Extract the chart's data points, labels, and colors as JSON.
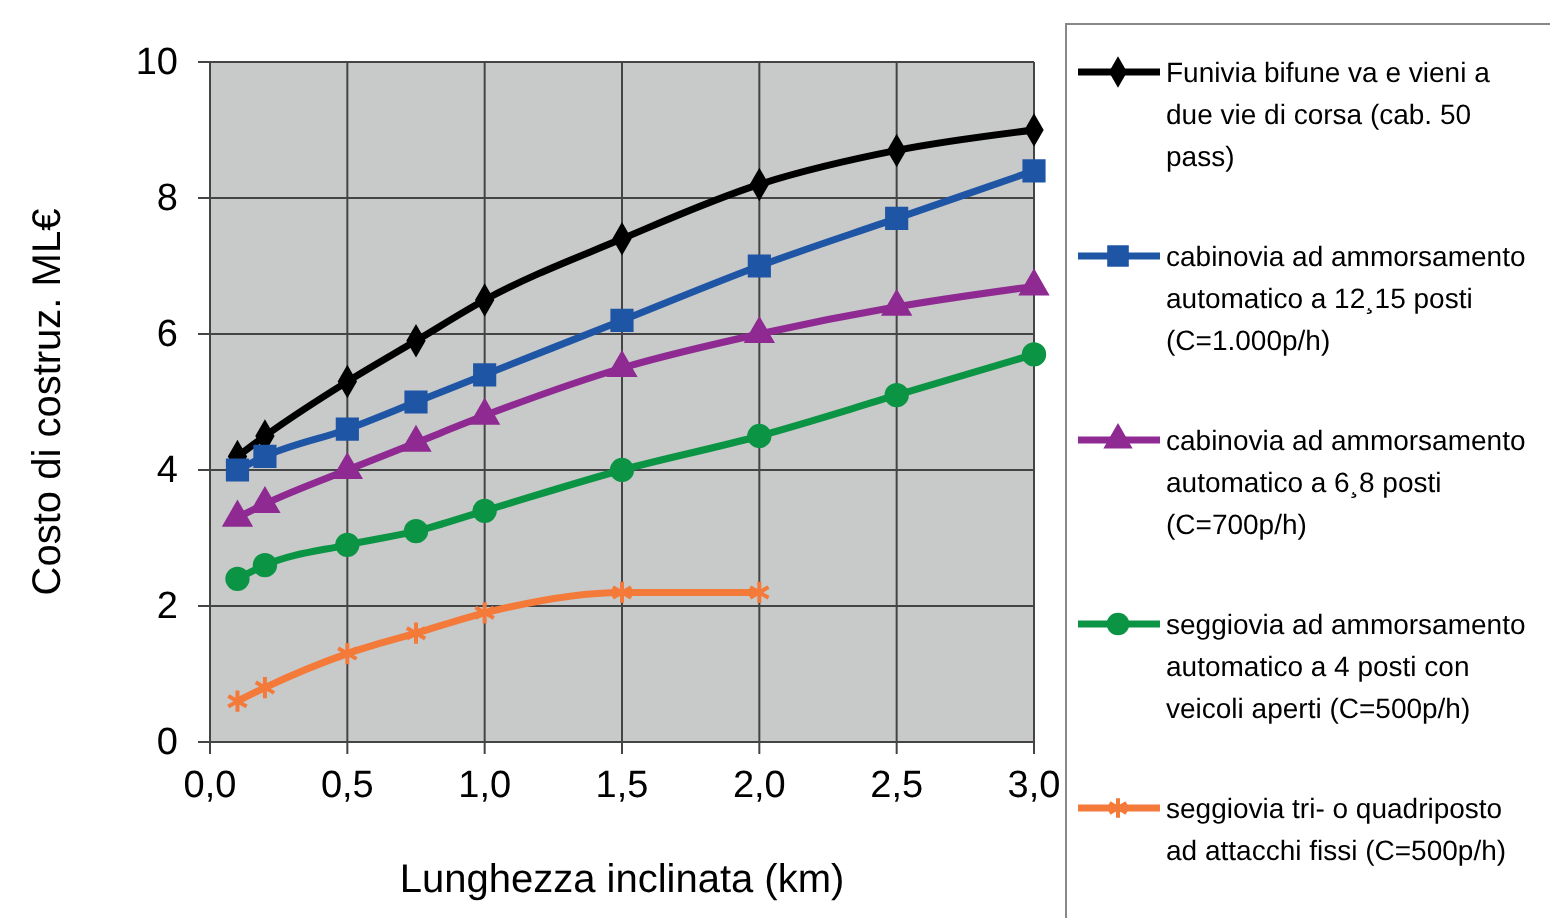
{
  "chart_data": {
    "type": "line",
    "xlabel": "Lunghezza inclinata (km)",
    "ylabel": "Costo di costruz. ML€",
    "xlim": [
      0,
      3
    ],
    "xticks": [
      {
        "value": 0,
        "label": "0,0"
      },
      {
        "value": 0.5,
        "label": "0,5"
      },
      {
        "value": 1,
        "label": "1,0"
      },
      {
        "value": 1.5,
        "label": "1,5"
      },
      {
        "value": 2,
        "label": "2,0"
      },
      {
        "value": 2.5,
        "label": "2,5"
      },
      {
        "value": 3,
        "label": "3,0"
      }
    ],
    "ylim": [
      0,
      10
    ],
    "yticks": [
      0,
      2,
      4,
      6,
      8,
      10
    ],
    "grid": true,
    "legend": "right",
    "line_style": "solid",
    "series": [
      {
        "name": "Funivia bifune va e vieni a due vie di corsa (cab. 50 pass)",
        "color": "#000000",
        "marker": "diamond",
        "x": [
          0.1,
          0.2,
          0.5,
          0.75,
          1,
          1.5,
          2,
          2.5,
          3
        ],
        "values": [
          4.2,
          4.5,
          5.3,
          5.9,
          6.5,
          7.4,
          8.2,
          8.7,
          9.0
        ]
      },
      {
        "name": "cabinovia ad ammorsamento automatico a 12¸15 posti (C=1.000p/h)",
        "color": "#1f55a5",
        "marker": "square",
        "x": [
          0.1,
          0.2,
          0.5,
          0.75,
          1,
          1.5,
          2,
          2.5,
          3
        ],
        "values": [
          4.0,
          4.2,
          4.6,
          5.0,
          5.4,
          6.2,
          7.0,
          7.7,
          8.4
        ]
      },
      {
        "name": "cabinovia ad ammorsamento automatico a 6¸8 posti (C=700p/h)",
        "color": "#8e2a91",
        "marker": "triangle",
        "x": [
          0.1,
          0.2,
          0.5,
          0.75,
          1,
          1.5,
          2,
          2.5,
          3
        ],
        "values": [
          3.3,
          3.5,
          4.0,
          4.4,
          4.8,
          5.5,
          6.0,
          6.4,
          6.7
        ]
      },
      {
        "name": "seggiovia ad ammorsamento automatico a 4 posti con veicoli aperti (C=500p/h)",
        "color": "#0b9444",
        "marker": "circle",
        "x": [
          0.1,
          0.2,
          0.5,
          0.75,
          1,
          1.5,
          2,
          2.5,
          3
        ],
        "values": [
          2.4,
          2.6,
          2.9,
          3.1,
          3.4,
          4.0,
          4.5,
          5.1,
          5.7
        ]
      },
      {
        "name": "seggiovia tri- o quadriposto ad attacchi fissi (C=500p/h)",
        "color": "#f47a3a",
        "marker": "cross",
        "x": [
          0.1,
          0.2,
          0.5,
          0.75,
          1,
          1.5,
          2
        ],
        "values": [
          0.6,
          0.8,
          1.3,
          1.6,
          1.9,
          2.2,
          2.2
        ]
      }
    ]
  }
}
